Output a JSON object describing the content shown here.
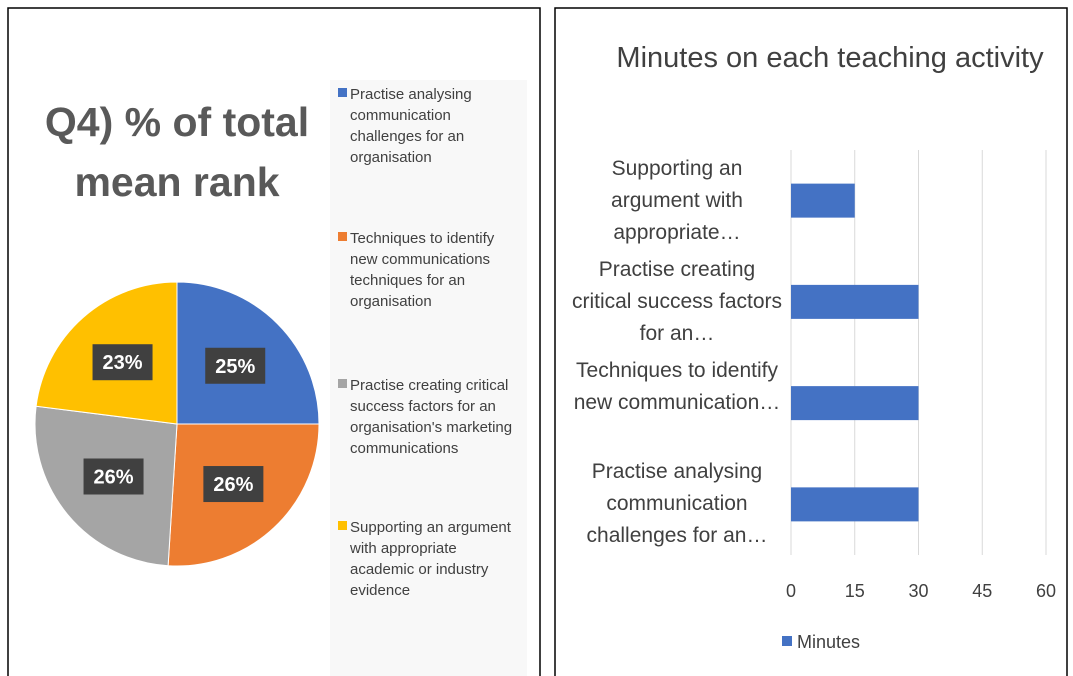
{
  "chart_data": [
    {
      "type": "pie",
      "title": "Q4) % of total mean rank",
      "categories": [
        "Practise analysing communication challenges for an organisation",
        "Techniques to identify new communications techniques for an organisation",
        "Practise creating critical success factors for an organisation's marketing communications",
        "Supporting an argument with appropriate academic or industry evidence"
      ],
      "values": [
        25,
        26,
        26,
        23
      ],
      "value_labels": [
        "25%",
        "26%",
        "26%",
        "23%"
      ],
      "colors": [
        "#4472c4",
        "#ed7d31",
        "#a5a5a5",
        "#ffc000"
      ],
      "legend": "right"
    },
    {
      "type": "hbar",
      "title": "Minutes on each teaching activity",
      "categories": [
        "Practise analysing communication challenges for an…",
        "Techniques to identify new communication…",
        "Practise creating critical success factors for an…",
        "Supporting an argument with appropriate…"
      ],
      "series": [
        {
          "name": "Minutes",
          "color": "#4472c4",
          "values": [
            30,
            30,
            30,
            15
          ]
        }
      ],
      "xlim": [
        0,
        60
      ],
      "xticks": [
        0,
        15,
        30,
        45,
        60
      ],
      "grid": true,
      "legend": "bottom"
    }
  ]
}
